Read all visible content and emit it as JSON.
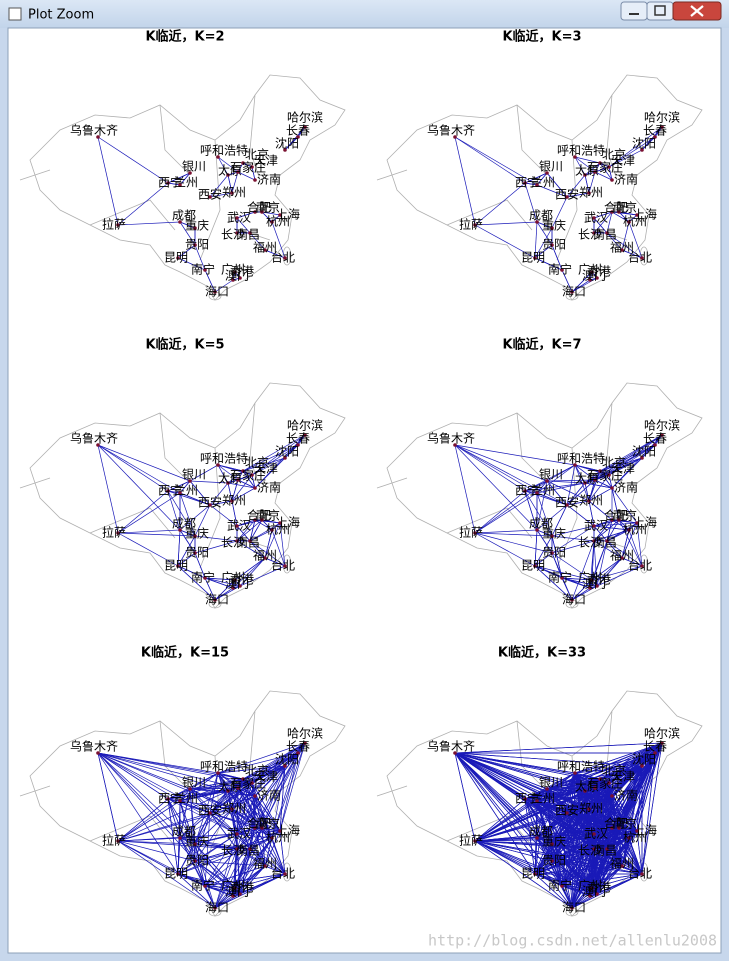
{
  "window": {
    "title": "Plot Zoom"
  },
  "panels": [
    {
      "title": "K临近，K=2"
    },
    {
      "title": "K临近，K=3"
    },
    {
      "title": "K临近，K=5"
    },
    {
      "title": "K临近，K=7"
    },
    {
      "title": "K临近，K=15"
    },
    {
      "title": "K临近，K=33"
    }
  ],
  "cities": [
    "乌鲁木齐",
    "哈尔滨",
    "长春",
    "沈阳",
    "呼和浩特",
    "北京",
    "天津",
    "银川",
    "太原",
    "石家庄",
    "济南",
    "西宁",
    "兰州",
    "西安",
    "郑州",
    "成都",
    "重庆",
    "拉萨",
    "武汉",
    "合肥",
    "南京",
    "上海",
    "杭州",
    "长沙",
    "南昌",
    "贵阳",
    "昆明",
    "福州",
    "台北",
    "南宁",
    "广州",
    "香港",
    "澳门",
    "海口"
  ],
  "watermark": "http://blog.csdn.net/allenlu2008"
}
